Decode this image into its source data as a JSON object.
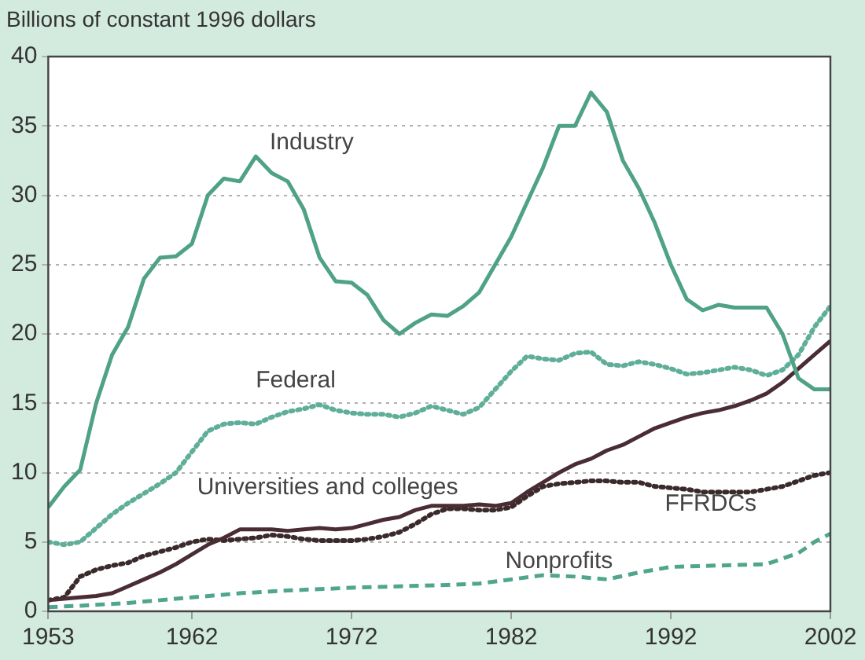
{
  "chart_data": {
    "type": "line",
    "ylabel": "Billions of constant 1996 dollars",
    "xlim": [
      1953,
      2002
    ],
    "xticks": [
      1953,
      1962,
      1972,
      1982,
      1992,
      2002
    ],
    "ylim": [
      0,
      40
    ],
    "yticks": [
      0,
      5,
      10,
      15,
      20,
      25,
      30,
      35,
      40
    ],
    "grid": "y",
    "legend": false,
    "marker": "none",
    "x": [
      1953,
      1954,
      1955,
      1956,
      1957,
      1958,
      1959,
      1960,
      1961,
      1962,
      1963,
      1964,
      1965,
      1966,
      1967,
      1968,
      1969,
      1970,
      1971,
      1972,
      1973,
      1974,
      1975,
      1976,
      1977,
      1978,
      1979,
      1980,
      1981,
      1982,
      1983,
      1984,
      1985,
      1986,
      1987,
      1988,
      1989,
      1990,
      1991,
      1992,
      1993,
      1994,
      1995,
      1996,
      1997,
      1998,
      1999,
      2000,
      2001,
      2002
    ],
    "series": [
      {
        "name": "Industry",
        "color": "#4fa287",
        "line_style": "solid",
        "values": [
          7.5,
          9,
          10.2,
          15,
          18.5,
          20.5,
          24,
          25.5,
          25.6,
          26.5,
          30,
          31.2,
          31,
          32.8,
          31.6,
          31,
          29,
          25.5,
          23.8,
          23.7,
          22.8,
          21,
          20,
          20.8,
          21.4,
          21.3,
          22,
          23,
          25,
          27,
          29.5,
          32,
          35,
          35,
          37.4,
          36,
          32.5,
          30.5,
          28,
          25,
          22.5,
          21.7,
          22.1,
          21.9,
          21.9,
          21.9,
          20,
          16.8,
          16,
          16
        ]
      },
      {
        "name": "Federal",
        "color": "#5fae98",
        "line_style": "dotted",
        "values": [
          5,
          4.8,
          5,
          6,
          7,
          7.8,
          8.5,
          9.2,
          10,
          11.5,
          13,
          13.5,
          13.6,
          13.5,
          14,
          14.4,
          14.6,
          14.9,
          14.5,
          14.3,
          14.2,
          14.2,
          14,
          14.3,
          14.8,
          14.5,
          14.2,
          14.7,
          16,
          17.3,
          18.4,
          18.2,
          18.1,
          18.6,
          18.7,
          17.8,
          17.7,
          18,
          17.8,
          17.5,
          17.1,
          17.2,
          17.4,
          17.6,
          17.4,
          17,
          17.4,
          18.5,
          20.5,
          22
        ]
      },
      {
        "name": "Universities and colleges",
        "color": "#4a2c34",
        "line_style": "solid",
        "values": [
          0.8,
          0.9,
          1,
          1.1,
          1.3,
          1.8,
          2.3,
          2.8,
          3.4,
          4.1,
          4.8,
          5.3,
          5.9,
          5.9,
          5.9,
          5.8,
          5.9,
          6,
          5.9,
          6,
          6.3,
          6.6,
          6.8,
          7.3,
          7.6,
          7.6,
          7.6,
          7.7,
          7.6,
          7.8,
          8.6,
          9.3,
          10,
          10.6,
          11,
          11.6,
          12,
          12.6,
          13.2,
          13.6,
          14,
          14.3,
          14.5,
          14.8,
          15.2,
          15.7,
          16.5,
          17.5,
          18.5,
          19.5
        ]
      },
      {
        "name": "FFRDCs",
        "color": "#3a2a2c",
        "line_style": "dotted",
        "values": [
          0.8,
          1,
          2.5,
          3,
          3.3,
          3.5,
          4,
          4.3,
          4.6,
          5,
          5.2,
          5.1,
          5.2,
          5.3,
          5.5,
          5.4,
          5.2,
          5.1,
          5.1,
          5.1,
          5.2,
          5.4,
          5.7,
          6.3,
          7,
          7.4,
          7.4,
          7.3,
          7.3,
          7.5,
          8.3,
          9,
          9.2,
          9.3,
          9.4,
          9.4,
          9.3,
          9.3,
          9,
          8.9,
          8.8,
          8.6,
          8.6,
          8.6,
          8.6,
          8.8,
          9,
          9.4,
          9.8,
          10
        ]
      },
      {
        "name": "Nonprofits",
        "color": "#4fa58d",
        "line_style": "dashed",
        "x": [
          1953,
          1955,
          1958,
          1960,
          1962,
          1965,
          1968,
          1972,
          1975,
          1978,
          1980,
          1982,
          1984,
          1986,
          1988,
          1990,
          1992,
          1995,
          1998,
          2000,
          2001,
          2002
        ],
        "values": [
          0.3,
          0.4,
          0.6,
          0.8,
          1,
          1.3,
          1.5,
          1.7,
          1.8,
          1.9,
          2,
          2.3,
          2.6,
          2.5,
          2.3,
          2.8,
          3.2,
          3.3,
          3.4,
          4.2,
          5,
          5.6
        ]
      }
    ]
  }
}
